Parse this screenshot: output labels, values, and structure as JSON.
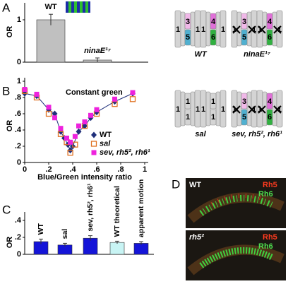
{
  "chart_data": [
    {
      "type": "bar",
      "label": "A",
      "ylabel": "OR",
      "categories": [
        "WT",
        "ninaE¹⁷"
      ],
      "values": [
        1.0,
        0.05
      ],
      "errors": [
        0.13,
        0.05
      ],
      "colors": [
        "#c0c0c0",
        "#c0c0c0"
      ],
      "ylim": [
        0,
        1.4
      ],
      "yticks": [
        0,
        1
      ]
    },
    {
      "type": "scatter",
      "label": "B",
      "title": "Constant green",
      "xlabel": "Blue/Green intensity ratio",
      "ylabel": "OR",
      "xlim": [
        0,
        1
      ],
      "ylim": [
        0,
        1
      ],
      "xticks": [
        0,
        {
          "value": 0.2,
          "label": ".2"
        },
        {
          "value": 0.4,
          "label": ".4"
        },
        {
          "value": 0.6,
          "label": ".6"
        },
        {
          "value": 0.8,
          "label": ".8"
        },
        1
      ],
      "yticks": [
        0,
        {
          "value": 0.2,
          "label": ".2"
        },
        {
          "value": 0.4,
          "label": ".4"
        },
        {
          "value": 0.6,
          "label": ".6"
        },
        {
          "value": 0.8,
          "label": ".8"
        },
        1
      ],
      "series": [
        {
          "name": "WT",
          "color": "#1f2f7a",
          "marker": "diamond",
          "line": true,
          "x": [
            0,
            0.1,
            0.2,
            0.25,
            0.3,
            0.33,
            0.36,
            0.38,
            0.4,
            0.45,
            0.5,
            0.55,
            0.6,
            0.75,
            0.9
          ],
          "values": [
            0.85,
            0.82,
            0.65,
            0.6,
            0.38,
            0.3,
            0.22,
            0.15,
            0.2,
            0.38,
            0.45,
            0.55,
            0.62,
            0.75,
            0.85
          ]
        },
        {
          "name": "sal",
          "color": "#e07020",
          "marker": "open-square",
          "line": false,
          "x": [
            0,
            0.1,
            0.2,
            0.3,
            0.35,
            0.38,
            0.42,
            0.5,
            0.6,
            0.75,
            0.9
          ],
          "values": [
            0.88,
            0.8,
            0.6,
            0.35,
            0.25,
            0.12,
            0.22,
            0.45,
            0.6,
            0.72,
            0.78
          ]
        },
        {
          "name": "sev, rh5², rh6¹",
          "color": "#ee22dd",
          "marker": "square",
          "line": false,
          "x": [
            0,
            0.1,
            0.2,
            0.25,
            0.3,
            0.35,
            0.38,
            0.42,
            0.45,
            0.5,
            0.55,
            0.6,
            0.75,
            0.9
          ],
          "values": [
            0.9,
            0.84,
            0.68,
            0.55,
            0.42,
            0.3,
            0.25,
            0.32,
            0.45,
            0.5,
            0.58,
            0.65,
            0.78,
            0.86
          ]
        }
      ],
      "legend": "lower-right"
    },
    {
      "type": "bar",
      "label": "C",
      "ylabel": "OR",
      "categories": [
        "WT",
        "sal",
        "sev, rh5², rh6¹",
        "WT theoretical",
        "apparent motion"
      ],
      "values": [
        0.15,
        0.11,
        0.19,
        0.14,
        0.13
      ],
      "errors": [
        0.03,
        0.02,
        0.03,
        0.015,
        0.02
      ],
      "colors": [
        "#1414d8",
        "#1414d8",
        "#1414d8",
        "#c8f4f4",
        "#1414d8"
      ],
      "ylim": [
        0,
        0.5
      ],
      "yticks": [
        0,
        {
          "value": 0.2,
          "label": ".2"
        },
        {
          "value": 0.4,
          "label": ".4"
        }
      ]
    }
  ],
  "ommatidia": [
    {
      "label": "WT",
      "units": [
        [
          "1",
          "3",
          "5",
          "1"
        ],
        [
          "1",
          "4",
          "6",
          "1"
        ]
      ],
      "crossed": false
    },
    {
      "label": "ninaE¹⁷",
      "units": [
        [
          "1",
          "3",
          "5",
          "1"
        ],
        [
          "1",
          "4",
          "6",
          "1"
        ]
      ],
      "crossed": true
    },
    {
      "label": "sal",
      "units": [
        [
          "1",
          "1",
          "1",
          "1"
        ],
        [
          "1",
          "1",
          "1",
          "1"
        ]
      ],
      "crossed": false
    },
    {
      "label": "sev, rh5², rh6¹",
      "units": [
        [
          "1",
          "3",
          "5",
          "1"
        ],
        [
          "1",
          "4",
          "6",
          "1"
        ]
      ],
      "crossed": true
    }
  ],
  "micrograph": {
    "label": "D",
    "panels": [
      {
        "genotype": "WT",
        "channels": [
          "Rh5",
          "Rh6"
        ]
      },
      {
        "genotype": "rh5²",
        "channels": [
          "Rh5",
          "Rh6"
        ]
      }
    ]
  }
}
